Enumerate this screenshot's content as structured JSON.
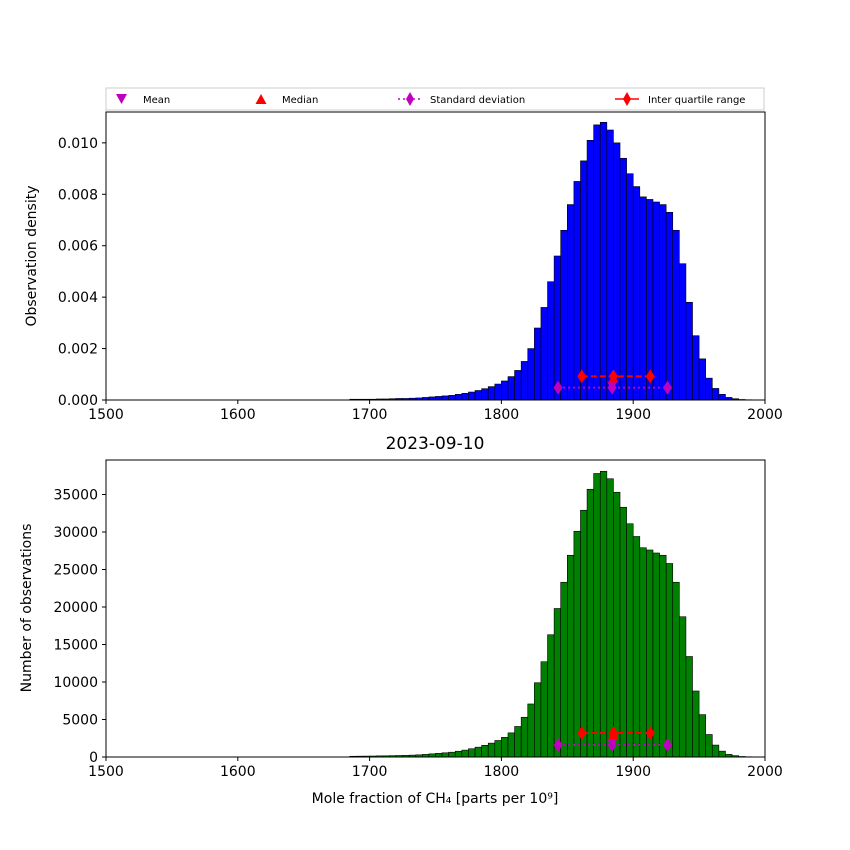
{
  "legend": {
    "mean": "Mean",
    "median": "Median",
    "std": "Standard deviation",
    "iqr": "Inter quartile range"
  },
  "colors": {
    "top_bar": "#0000ff",
    "bottom_bar": "#008000",
    "stat_red": "#ff0000",
    "stat_magenta": "#bf00bf",
    "edge": "#000000"
  },
  "chart_data": [
    {
      "type": "bar",
      "title": "",
      "xlabel": "",
      "ylabel": "Observation density",
      "xlim": [
        1500,
        2000
      ],
      "ylim": [
        0,
        0.0112
      ],
      "xticks": [
        "1500",
        "1600",
        "1700",
        "1800",
        "1900",
        "2000"
      ],
      "yticks": [
        "0.000",
        "0.002",
        "0.004",
        "0.006",
        "0.008",
        "0.010"
      ],
      "ytick_values": [
        0,
        0.002,
        0.004,
        0.006,
        0.008,
        0.01
      ],
      "bin_width": 5,
      "bin_start": 1685,
      "values": [
        3e-05,
        3e-05,
        3e-05,
        3e-05,
        4e-05,
        4e-05,
        5e-05,
        6e-05,
        6e-05,
        7e-05,
        8e-05,
        0.0001,
        0.00012,
        0.00014,
        0.00016,
        0.00018,
        0.00022,
        0.00026,
        0.00031,
        0.00037,
        0.00044,
        0.00052,
        0.00062,
        0.00074,
        0.00091,
        0.00115,
        0.0015,
        0.002,
        0.0028,
        0.0036,
        0.0046,
        0.0056,
        0.0066,
        0.0076,
        0.0085,
        0.0093,
        0.0101,
        0.0107,
        0.0108,
        0.0105,
        0.01,
        0.0094,
        0.0088,
        0.0083,
        0.0079,
        0.0078,
        0.0077,
        0.0076,
        0.0073,
        0.0066,
        0.0053,
        0.0038,
        0.0025,
        0.0016,
        0.00085,
        0.00045,
        0.00022,
        0.0001,
        5e-05,
        2e-05,
        1e-05
      ],
      "stats": {
        "mean": 1884,
        "median": 1885,
        "std_range": [
          1843,
          1926
        ],
        "iqr_range": [
          1861,
          1913
        ],
        "std_y": 0.00048,
        "iqr_y": 0.00092
      }
    },
    {
      "type": "bar",
      "title": "2023-09-10",
      "xlabel": "Mole fraction of CH₄ [parts per 10⁹]",
      "ylabel": "Number of observations",
      "xlim": [
        1500,
        2000
      ],
      "ylim": [
        0,
        39600
      ],
      "xticks": [
        "1500",
        "1600",
        "1700",
        "1800",
        "1900",
        "2000"
      ],
      "yticks": [
        "0",
        "5000",
        "10000",
        "15000",
        "20000",
        "25000",
        "30000",
        "35000"
      ],
      "ytick_values": [
        0,
        5000,
        10000,
        15000,
        20000,
        25000,
        30000,
        35000
      ],
      "bin_width": 5,
      "bin_start": 1685,
      "values": [
        100,
        110,
        120,
        130,
        150,
        160,
        180,
        200,
        220,
        250,
        290,
        350,
        420,
        490,
        560,
        640,
        770,
        920,
        1100,
        1310,
        1560,
        1850,
        2200,
        2620,
        3220,
        4070,
        5300,
        7070,
        9900,
        12700,
        16300,
        19800,
        23300,
        26900,
        30100,
        32900,
        35700,
        37800,
        38100,
        37100,
        35300,
        33300,
        31100,
        29400,
        27900,
        27600,
        27200,
        26900,
        25800,
        23300,
        18700,
        13400,
        8800,
        5650,
        3000,
        1590,
        780,
        350,
        180,
        70,
        35
      ],
      "stats": {
        "mean": 1884,
        "median": 1885,
        "std_range": [
          1843,
          1926
        ],
        "iqr_range": [
          1861,
          1913
        ],
        "std_y": 1600,
        "iqr_y": 3200
      }
    }
  ]
}
